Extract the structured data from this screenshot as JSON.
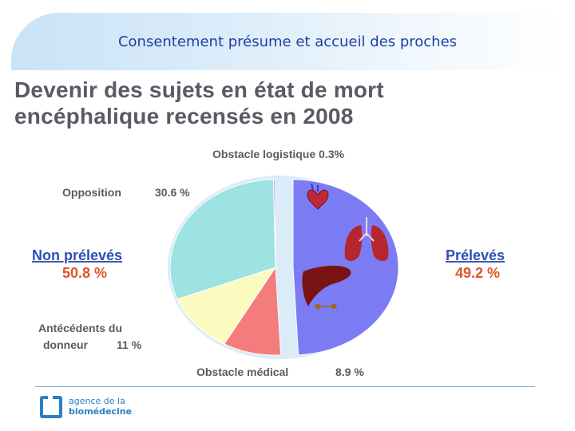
{
  "slide": {
    "title": "Consentement présume et accueil des proches",
    "heading_line1": "Devenir des sujets en état de mort",
    "heading_line2": "encéphalique recensés en 2008"
  },
  "chart_data": {
    "type": "pie",
    "title": "Devenir des sujets en état de mort encéphalique recensés en 2008",
    "slices": [
      {
        "label": "Prélevés",
        "value": 49.2,
        "value_text": "49.2 %",
        "color": "#7b7cf4",
        "exploded": true
      },
      {
        "label": "Obstacle médical",
        "value": 8.9,
        "value_text": "8.9 %",
        "color": "#f47c7c"
      },
      {
        "label": "Antécédents du donneur",
        "value": 11,
        "value_text": "11 %",
        "color": "#fbfbbf"
      },
      {
        "label": "Opposition",
        "value": 30.6,
        "value_text": "30.6 %",
        "color": "#9de3e1"
      },
      {
        "label": "Obstacle logistique",
        "value": 0.3,
        "value_text": "0.3%",
        "color": "#c9a0f5"
      }
    ],
    "groups": [
      {
        "label": "Prélevés",
        "value": 49.2,
        "value_text": "49.2 %"
      },
      {
        "label": "Non prélevés",
        "value": 50.8,
        "value_text": "50.8 %"
      }
    ],
    "pie_background_color": "#d9ecf8",
    "start_angle_degrees": 0,
    "direction": "clockwise"
  },
  "labels": {
    "obstacle_logistique": "Obstacle logistique 0.3%",
    "opposition_name": "Opposition",
    "opposition_value": "30.6 %",
    "non_preleves_name": "Non prélevés",
    "non_preleves_value": "50.8 %",
    "preleves_name": "Prélevés",
    "preleves_value": "49.2 %",
    "antecedents_line1": "Antécédents du",
    "antecedents_line2": "donneur",
    "antecedents_value": "11 %",
    "obstacle_medical_name": "Obstacle médical",
    "obstacle_medical_value": "8.9 %"
  },
  "organ_icons": [
    "heart-icon",
    "lungs-icon",
    "liver-icon",
    "kidneys-icon"
  ],
  "footer": {
    "logo_line1": "agence de la",
    "logo_line2": "biomédecine"
  }
}
